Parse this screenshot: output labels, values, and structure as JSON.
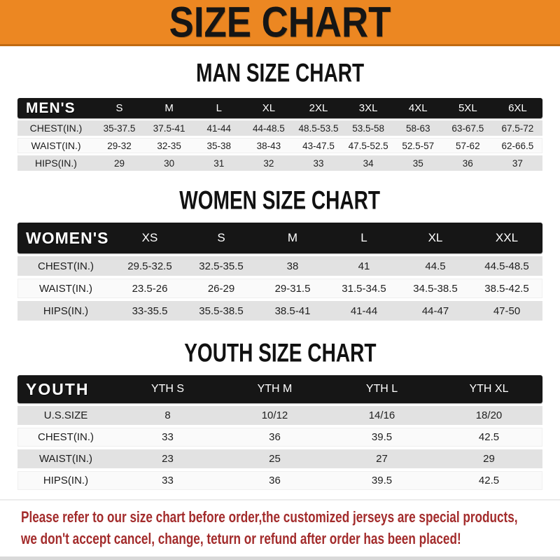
{
  "banner": {
    "title": "SIZE CHART",
    "bg_color": "#EC8722",
    "text_color": "#151515"
  },
  "colors": {
    "header_bar": "#161616",
    "row_gray": "#E2E2E2",
    "row_white": "#FAFAFA",
    "disclaimer_red": "#A32C2C"
  },
  "chart_data": [
    {
      "type": "table",
      "id": "men",
      "title": "MAN SIZE CHART",
      "group_label": "MEN'S",
      "columns": [
        "S",
        "M",
        "L",
        "XL",
        "2XL",
        "3XL",
        "4XL",
        "5XL",
        "6XL"
      ],
      "rows": [
        {
          "label": "CHEST(IN.)",
          "values": [
            "35-37.5",
            "37.5-41",
            "41-44",
            "44-48.5",
            "48.5-53.5",
            "53.5-58",
            "58-63",
            "63-67.5",
            "67.5-72"
          ]
        },
        {
          "label": "WAIST(IN.)",
          "values": [
            "29-32",
            "32-35",
            "35-38",
            "38-43",
            "43-47.5",
            "47.5-52.5",
            "52.5-57",
            "57-62",
            "62-66.5"
          ]
        },
        {
          "label": "HIPS(IN.)",
          "values": [
            "29",
            "30",
            "31",
            "32",
            "33",
            "34",
            "35",
            "36",
            "37"
          ]
        }
      ]
    },
    {
      "type": "table",
      "id": "women",
      "title": "WOMEN SIZE CHART",
      "group_label": "WOMEN'S",
      "columns": [
        "XS",
        "S",
        "M",
        "L",
        "XL",
        "XXL"
      ],
      "rows": [
        {
          "label": "CHEST(IN.)",
          "values": [
            "29.5-32.5",
            "32.5-35.5",
            "38",
            "41",
            "44.5",
            "44.5-48.5"
          ]
        },
        {
          "label": "WAIST(IN.)",
          "values": [
            "23.5-26",
            "26-29",
            "29-31.5",
            "31.5-34.5",
            "34.5-38.5",
            "38.5-42.5"
          ]
        },
        {
          "label": "HIPS(IN.)",
          "values": [
            "33-35.5",
            "35.5-38.5",
            "38.5-41",
            "41-44",
            "44-47",
            "47-50"
          ]
        }
      ]
    },
    {
      "type": "table",
      "id": "youth",
      "title": "YOUTH SIZE CHART",
      "group_label": "YOUTH",
      "columns": [
        "YTH S",
        "YTH M",
        "YTH L",
        "YTH XL"
      ],
      "rows": [
        {
          "label": "U.S.SIZE",
          "values": [
            "8",
            "10/12",
            "14/16",
            "18/20"
          ]
        },
        {
          "label": "CHEST(IN.)",
          "values": [
            "33",
            "36",
            "39.5",
            "42.5"
          ]
        },
        {
          "label": "WAIST(IN.)",
          "values": [
            "23",
            "25",
            "27",
            "29"
          ]
        },
        {
          "label": "HIPS(IN.)",
          "values": [
            "33",
            "36",
            "39.5",
            "42.5"
          ]
        }
      ]
    }
  ],
  "footer": {
    "lines": [
      "Please refer to our size chart before order,the customized jerseys are special products,",
      "we don't accept cancel, change, teturn or refund after order has been placed!"
    ]
  }
}
